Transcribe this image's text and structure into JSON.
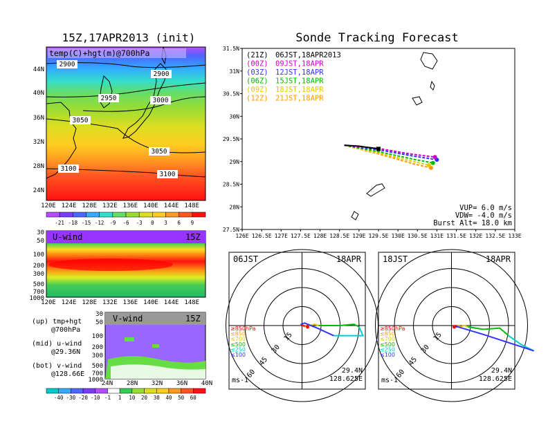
{
  "left_title": "15Z,17APR2013 (init)",
  "right_title": "Sonde Tracking Forecast",
  "temp_map": {
    "label": "temp(C)+hgt(m)@700hPa",
    "lat_ticks": [
      "44N",
      "40N",
      "36N",
      "32N",
      "28N",
      "24N"
    ],
    "lon_ticks": [
      "120E",
      "124E",
      "128E",
      "132E",
      "136E",
      "140E",
      "144E",
      "148E"
    ],
    "contours": [
      "2900",
      "2900",
      "2950",
      "3000",
      "3050",
      "3050",
      "3100",
      "3100"
    ]
  },
  "temp_colorbar": [
    "-21",
    "-18",
    "-15",
    "-12",
    "-9",
    "-6",
    "-3",
    "0",
    "3",
    "6",
    "9"
  ],
  "uwind": {
    "label": "U-wind",
    "time": "15Z",
    "p_ticks": [
      "30",
      "50",
      "100",
      "200",
      "300",
      "500",
      "700",
      "1000"
    ],
    "lon_ticks": [
      "120E",
      "124E",
      "128E",
      "132E",
      "136E",
      "140E",
      "144E",
      "148E"
    ]
  },
  "vwind": {
    "label": "V-wind",
    "time": "15Z",
    "p_ticks": [
      "30",
      "50",
      "100",
      "200",
      "300",
      "500",
      "700",
      "1000"
    ],
    "lat_ticks": [
      "24N",
      "28N",
      "32N",
      "36N",
      "40N"
    ]
  },
  "notes": [
    "(up) tmp+hgt",
    "@700hPa",
    "(mid) u-wind",
    "@29.36N",
    "(bot) v-wind",
    "@128.66E"
  ],
  "wind_colorbar": [
    "-40",
    "-30",
    "-20",
    "-10",
    "-1",
    "1",
    "10",
    "20",
    "30",
    "40",
    "50",
    "60"
  ],
  "colors": {
    "red": "#ff0000",
    "orange": "#ff9900",
    "yellow": "#e6e600",
    "green": "#33cc33",
    "cyan": "#00cccc",
    "blue": "#3333ff",
    "purple": "#9900cc",
    "magenta": "#ff00ff"
  },
  "chart_data": [
    {
      "type": "line",
      "title": "Sonde Tracking Forecast",
      "xlim": [
        126,
        133
      ],
      "ylim": [
        27.5,
        31.5
      ],
      "x_ticks": [
        "126E",
        "126.5E",
        "127E",
        "127.5E",
        "128E",
        "128.5E",
        "129E",
        "129.5E",
        "130E",
        "130.5E",
        "131E",
        "131.5E",
        "132E",
        "132.5E",
        "133E"
      ],
      "y_ticks": [
        "27.5N",
        "28N",
        "28.5N",
        "29N",
        "29.5N",
        "30N",
        "30.5N",
        "31N",
        "31.5N"
      ],
      "legend": [
        {
          "run": "(21Z)",
          "label": "06JST,18APR2013",
          "color": "#000000"
        },
        {
          "run": "(00Z)",
          "label": "09JST,18APR",
          "color": "#cc00cc"
        },
        {
          "run": "(03Z)",
          "label": "12JST,18APR",
          "color": "#3333ff"
        },
        {
          "run": "(06Z)",
          "label": "15JST,18APR",
          "color": "#00bb00"
        },
        {
          "run": "(09Z)",
          "label": "18JST,18APR",
          "color": "#e6c800"
        },
        {
          "run": "(12Z)",
          "label": "21JST,18APR",
          "color": "#ff9900"
        }
      ],
      "series": [
        {
          "name": "(21Z)",
          "color": "#000000",
          "x": [
            128.625,
            129.0,
            129.5
          ],
          "y": [
            29.36,
            29.34,
            29.28
          ]
        },
        {
          "name": "(00Z)",
          "color": "#cc00cc",
          "x": [
            128.625,
            129.5,
            130.3,
            130.95
          ],
          "y": [
            29.36,
            29.29,
            29.17,
            29.1
          ]
        },
        {
          "name": "(03Z)",
          "color": "#3333ff",
          "x": [
            128.625,
            129.5,
            130.4,
            131.0
          ],
          "y": [
            29.36,
            29.26,
            29.12,
            29.04
          ]
        },
        {
          "name": "(06Z)",
          "color": "#00bb00",
          "x": [
            128.625,
            129.5,
            130.4,
            130.9
          ],
          "y": [
            29.36,
            29.22,
            29.05,
            28.97
          ]
        },
        {
          "name": "(09Z)",
          "color": "#e6c800",
          "x": [
            128.625,
            129.5,
            130.4,
            130.8
          ],
          "y": [
            29.36,
            29.19,
            29.0,
            28.92
          ]
        },
        {
          "name": "(12Z)",
          "color": "#ff9900",
          "x": [
            128.625,
            129.5,
            130.4,
            130.85
          ],
          "y": [
            29.36,
            29.17,
            28.95,
            28.86
          ]
        }
      ],
      "params": [
        "VUP=  6.0 m/s",
        "VDW= -4.0 m/s",
        "Burst Alt= 18.0 km"
      ]
    },
    {
      "type": "line",
      "time_label": "06JST",
      "date_label": "18APR",
      "units": "ms-1",
      "ring_labels": [
        "15",
        "30",
        "45",
        "60"
      ],
      "levels": [
        {
          "label": "≥850hPa",
          "color": "#ff0000"
        },
        {
          "label": "≤850",
          "color": "#ff9900"
        },
        {
          "label": "≤700",
          "color": "#e6c800"
        },
        {
          "label": "≤500",
          "color": "#00bb00"
        },
        {
          "label": "≤250",
          "color": "#00cccc"
        },
        {
          "label": "≤100",
          "color": "#3333ff"
        }
      ],
      "hodograph": [
        {
          "color": "#ff0000",
          "u": [
            -1,
            1,
            2
          ],
          "v": [
            1,
            0,
            -1
          ]
        },
        {
          "color": "#ff9900",
          "u": [
            2,
            5,
            6
          ],
          "v": [
            -1,
            1,
            0
          ]
        },
        {
          "color": "#e6c800",
          "u": [
            6,
            10,
            13
          ],
          "v": [
            0,
            1,
            0
          ]
        },
        {
          "color": "#00bb00",
          "u": [
            13,
            30,
            41,
            45
          ],
          "v": [
            0,
            0,
            1,
            -1
          ]
        },
        {
          "color": "#00cccc",
          "u": [
            45,
            48,
            25
          ],
          "v": [
            -1,
            -8,
            -8
          ]
        },
        {
          "color": "#3333ff",
          "u": [
            25,
            12,
            2,
            -1
          ],
          "v": [
            -8,
            -2,
            2,
            1
          ]
        }
      ],
      "position": [
        "29.4N",
        "128.625E"
      ]
    },
    {
      "type": "line",
      "time_label": "18JST",
      "date_label": "18APR",
      "units": "ms-1",
      "ring_labels": [
        "15",
        "30",
        "45",
        "60"
      ],
      "levels": [
        {
          "label": "≥850hPa",
          "color": "#ff0000"
        },
        {
          "label": "≤850",
          "color": "#ff9900"
        },
        {
          "label": "≤700",
          "color": "#e6c800"
        },
        {
          "label": "≤500",
          "color": "#00bb00"
        },
        {
          "label": "≤250",
          "color": "#00cccc"
        },
        {
          "label": "≤100",
          "color": "#3333ff"
        }
      ],
      "hodograph": [
        {
          "color": "#ff0000",
          "u": [
            1,
            3,
            4
          ],
          "v": [
            -1,
            0,
            -1
          ]
        },
        {
          "color": "#ff9900",
          "u": [
            4,
            6,
            7
          ],
          "v": [
            -1,
            0,
            -1
          ]
        },
        {
          "color": "#e6c800",
          "u": [
            7,
            10,
            13
          ],
          "v": [
            -1,
            0,
            -1
          ]
        },
        {
          "color": "#00bb00",
          "u": [
            13,
            25,
            38,
            45
          ],
          "v": [
            -1,
            -3,
            -2,
            -8
          ]
        },
        {
          "color": "#00cccc",
          "u": [
            45,
            55,
            65
          ],
          "v": [
            -8,
            -15,
            -20
          ]
        },
        {
          "color": "#3333ff",
          "u": [
            65,
            25,
            5,
            1
          ],
          "v": [
            -20,
            -7,
            -1,
            -1
          ]
        }
      ],
      "position": [
        "29.4N",
        "128.625E"
      ]
    }
  ]
}
